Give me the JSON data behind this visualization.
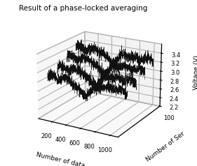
{
  "title": "Result of a phase-locked averaging",
  "xlabel": "Number of data",
  "ylabel": "Number of Ser",
  "zlabel": "Voltage (V)",
  "xlim": [
    0,
    1100
  ],
  "ylim": [
    0,
    5
  ],
  "zlim": [
    2.2,
    3.6
  ],
  "xticks": [
    200,
    400,
    600,
    800,
    1000
  ],
  "zticks": [
    2.2,
    2.4,
    2.6,
    2.8,
    3.0,
    3.2,
    3.4
  ],
  "ytick_vals": [
    5
  ],
  "ytick_labels": [
    "100"
  ],
  "n_points": 1100,
  "n_series": 4,
  "series_base": [
    2.95,
    3.05,
    3.18,
    3.3
  ],
  "slow_amp": [
    0.12,
    0.1,
    0.09,
    0.08
  ],
  "noise_scale": 0.06,
  "series_y": [
    1,
    2,
    3,
    4
  ],
  "line_color": "#111111",
  "title_fontsize": 7.5,
  "label_fontsize": 6.5,
  "tick_fontsize": 6,
  "elev": 20,
  "azim": -60
}
